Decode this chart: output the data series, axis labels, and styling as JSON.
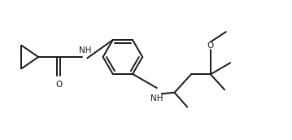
{
  "bg_color": "#ffffff",
  "bond_color": "#1a1a1a",
  "line_width": 1.4,
  "figsize": [
    3.59,
    1.72
  ],
  "dpi": 100,
  "xlim": [
    0,
    10
  ],
  "ylim": [
    0,
    4.8
  ]
}
